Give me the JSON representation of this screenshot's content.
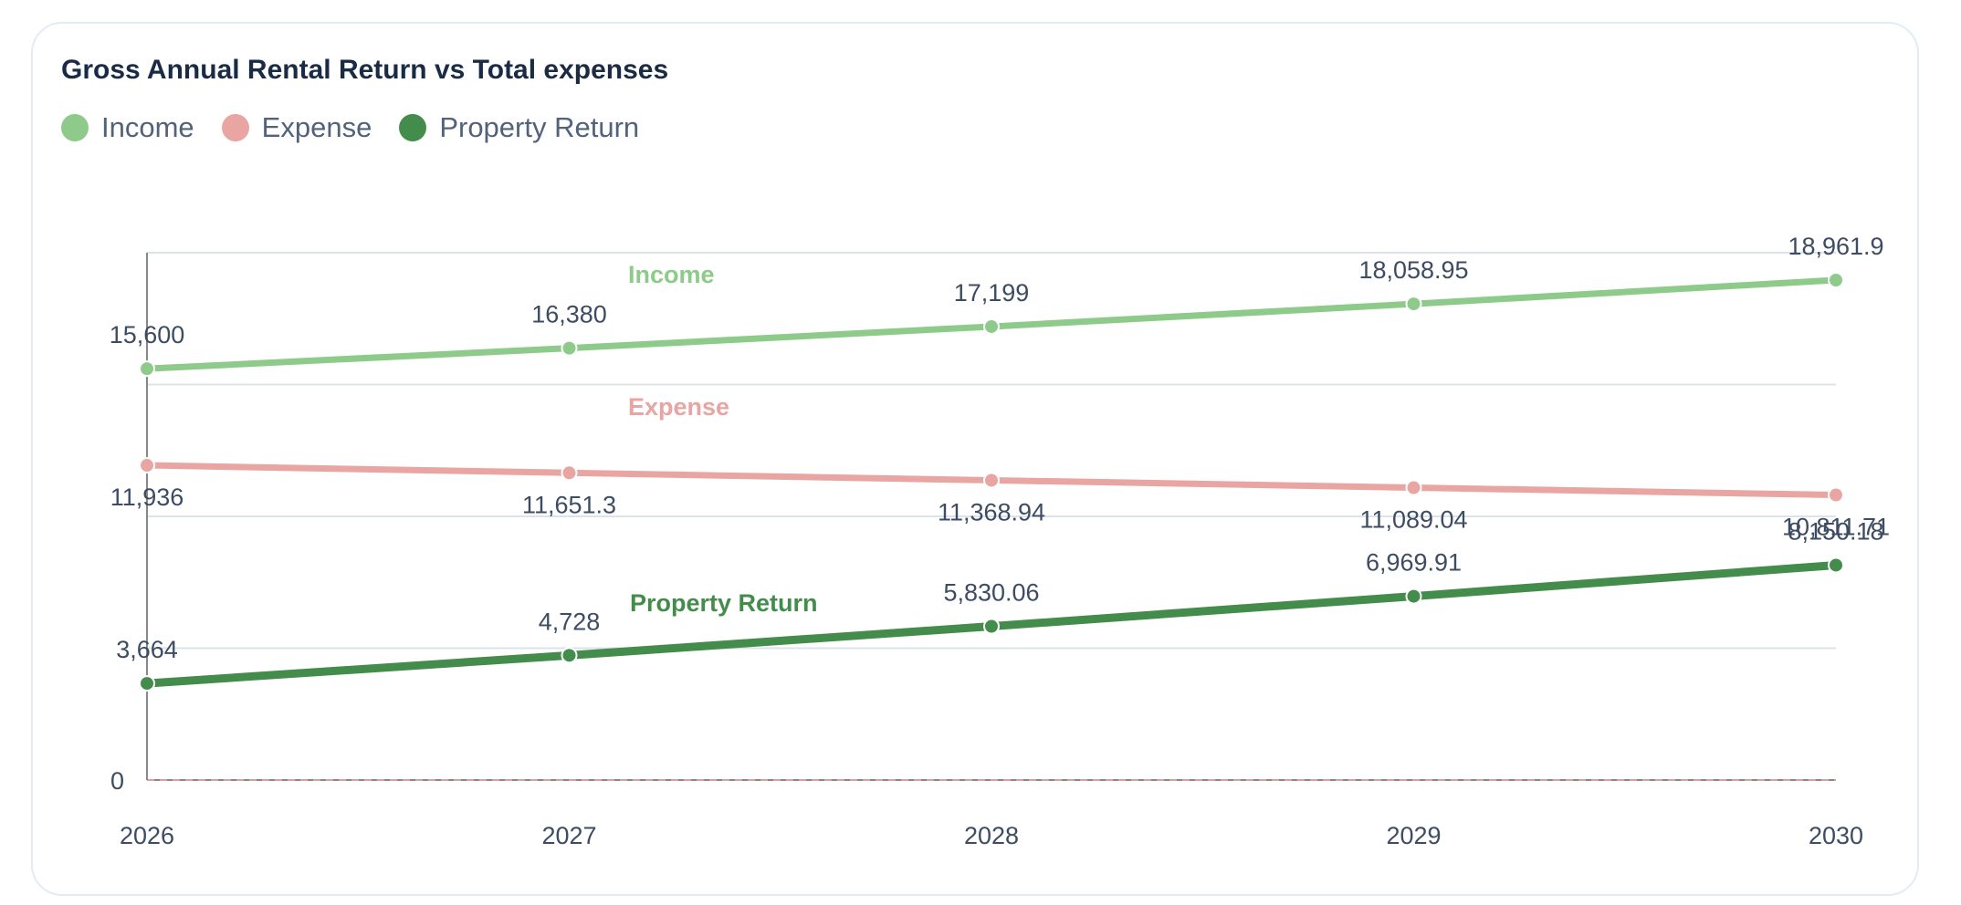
{
  "chart_data": {
    "type": "line",
    "title": "Gross Annual Rental Return vs Total expenses",
    "xlabel": "",
    "ylabel": "",
    "categories": [
      "2026",
      "2027",
      "2028",
      "2029",
      "2030"
    ],
    "y_ticks": [
      "0"
    ],
    "ylim": [
      0,
      20000
    ],
    "grid": true,
    "legend_position": "top-left",
    "series": [
      {
        "name": "Income",
        "color": "#8ecb8a",
        "values": [
          15600,
          16380,
          17199,
          18058.95,
          18961.9
        ],
        "labels": [
          "15,600",
          "16,380",
          "17,199",
          "18,058.95",
          "18,961.9"
        ]
      },
      {
        "name": "Expense",
        "color": "#e8a5a2",
        "values": [
          11936,
          11651.3,
          11368.94,
          11089.04,
          10811.71
        ],
        "labels": [
          "11,936",
          "11,651.3",
          "11,368.94",
          "11,089.04",
          "10,811.71"
        ]
      },
      {
        "name": "Property Return",
        "color": "#448c4c",
        "values": [
          3664,
          4728,
          5830.06,
          6969.91,
          8150.18
        ],
        "labels": [
          "3,664",
          "4,728",
          "5,830.06",
          "6,969.91",
          "8,150.18"
        ]
      }
    ]
  }
}
